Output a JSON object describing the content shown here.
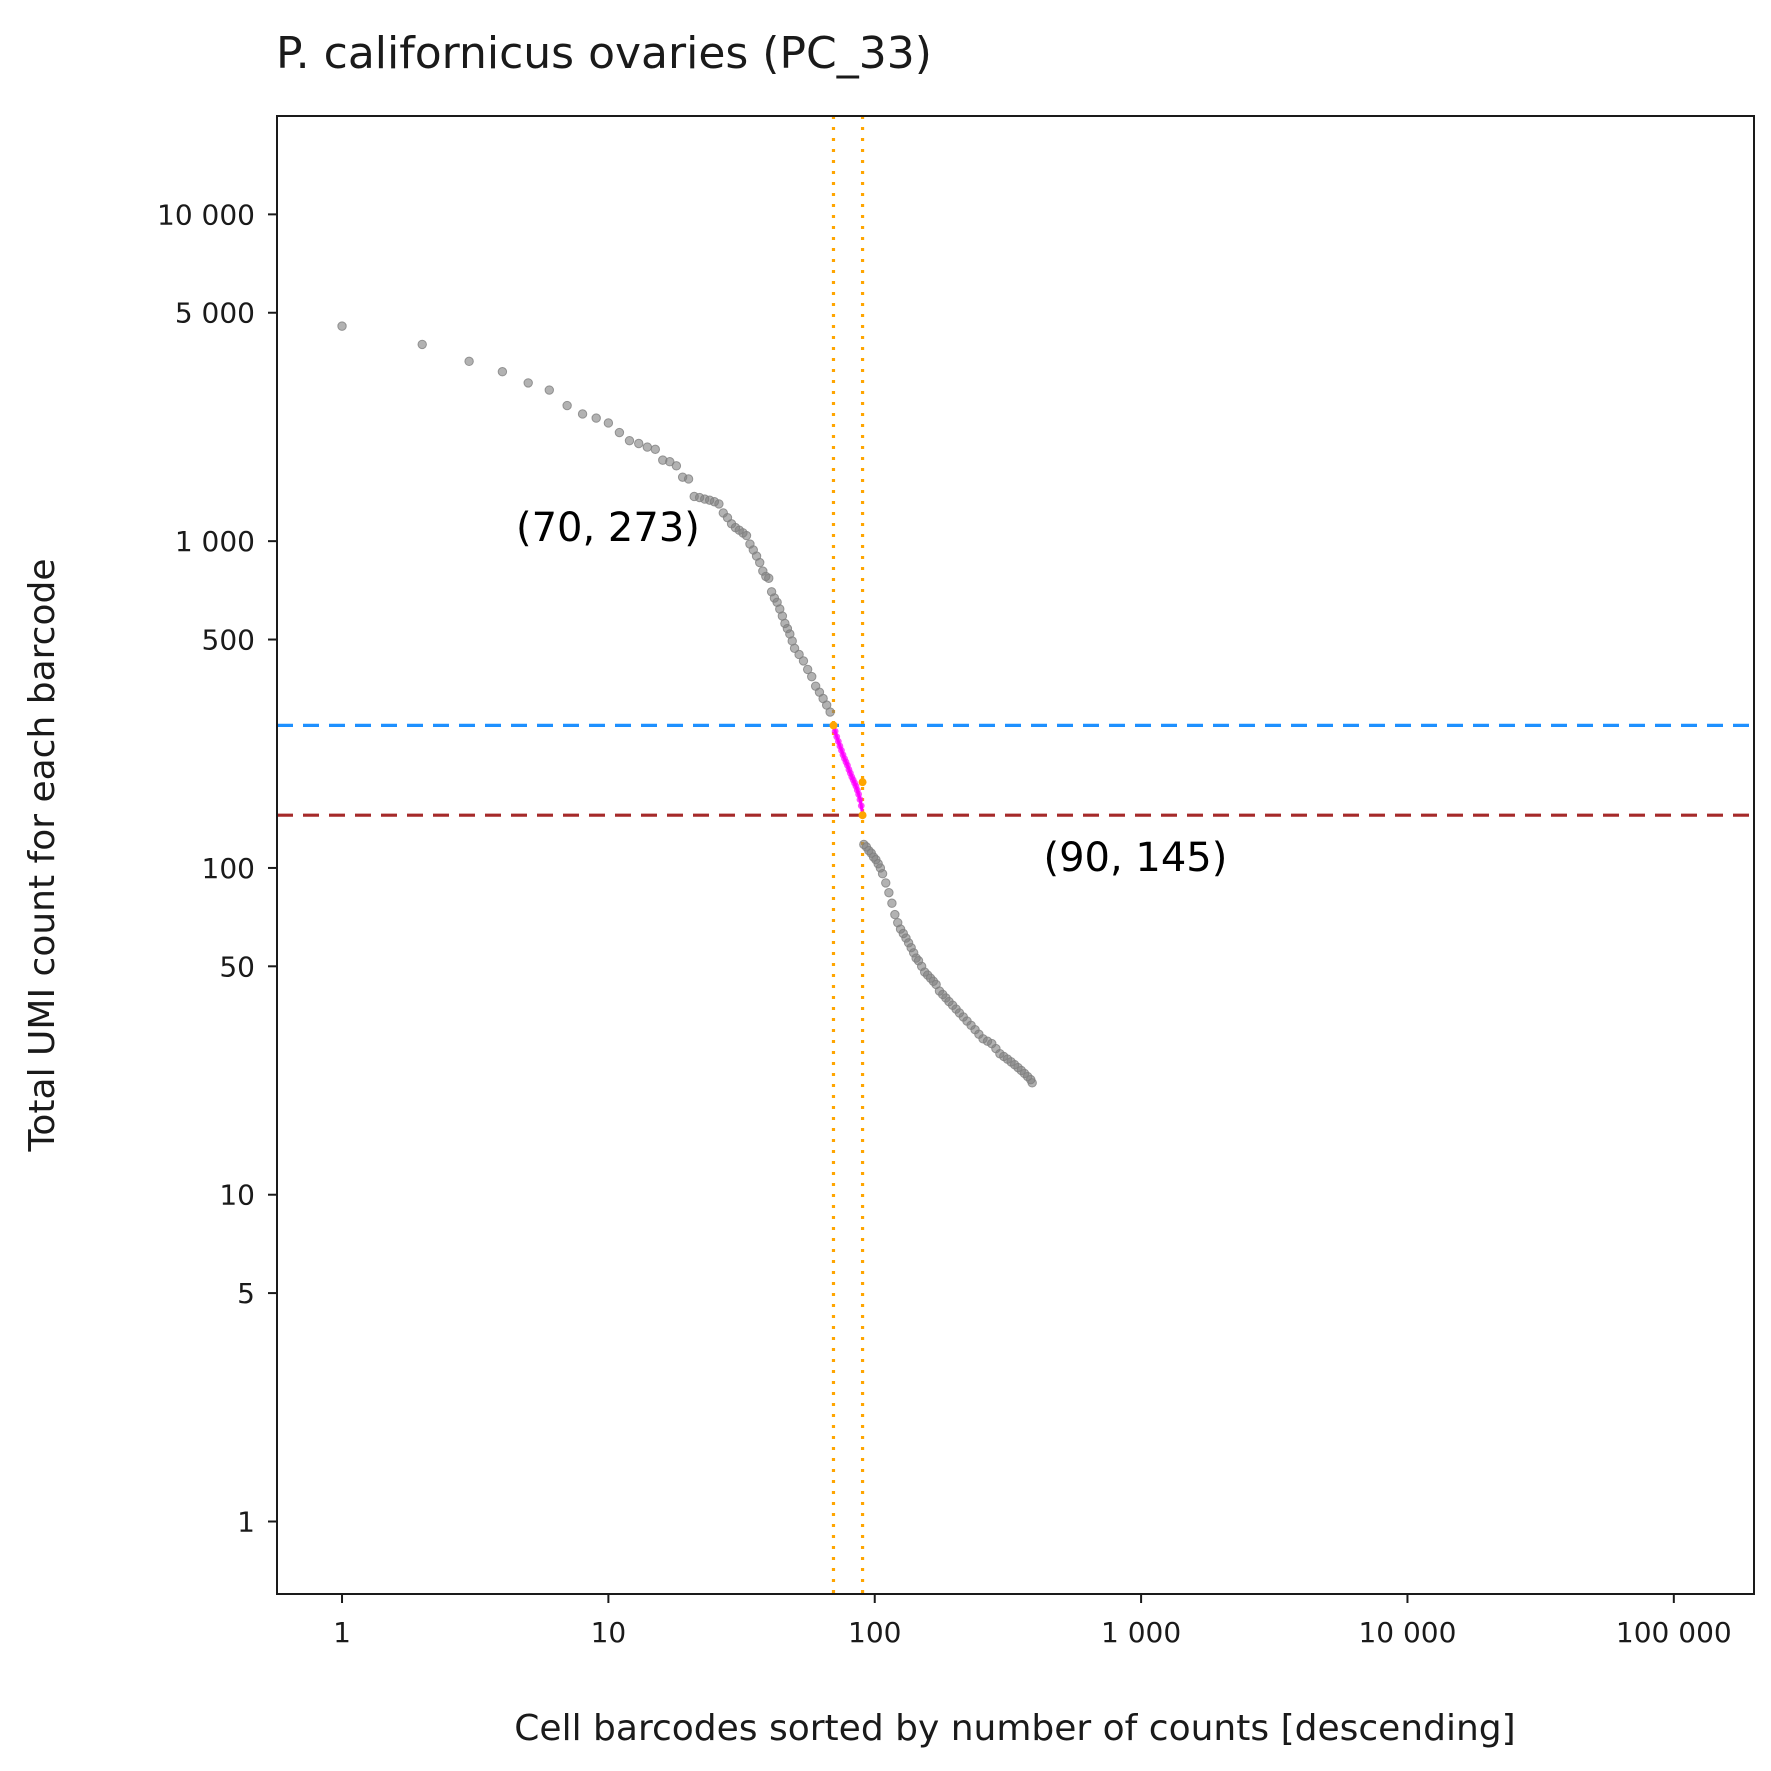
{
  "chart_data": {
    "type": "scatter",
    "title": "P. californicus ovaries (PC_33)",
    "xlabel": "Cell barcodes sorted by number of counts [descending]",
    "ylabel": "Total UMI count for each barcode",
    "xscale": "log",
    "yscale": "log",
    "xlim": [
      0.57,
      200000
    ],
    "ylim": [
      0.6,
      20000
    ],
    "grid": false,
    "x_ticks": [
      {
        "value": 1,
        "label": "1"
      },
      {
        "value": 10,
        "label": "10"
      },
      {
        "value": 100,
        "label": "100"
      },
      {
        "value": 1000,
        "label": "1 000"
      },
      {
        "value": 10000,
        "label": "10 000"
      },
      {
        "value": 100000,
        "label": "100 000"
      }
    ],
    "y_ticks": [
      {
        "value": 1,
        "label": "1"
      },
      {
        "value": 5,
        "label": "5"
      },
      {
        "value": 10,
        "label": "10"
      },
      {
        "value": 50,
        "label": "50"
      },
      {
        "value": 100,
        "label": "100"
      },
      {
        "value": 500,
        "label": "500"
      },
      {
        "value": 1000,
        "label": "1 000"
      },
      {
        "value": 5000,
        "label": "5 000"
      },
      {
        "value": 10000,
        "label": "10 000"
      }
    ],
    "colors": {
      "points": "#7f7f7f",
      "highlight": "#ff00ff",
      "knee_marker": "#ffa500",
      "upper_threshold": "#1e90ff",
      "lower_threshold": "#a52a2a",
      "vertical_lines": "#ffa500"
    },
    "series": [
      {
        "role": "barcodes",
        "points": [
          [
            1,
            4550
          ],
          [
            2,
            4000
          ],
          [
            3,
            3550
          ],
          [
            4,
            3300
          ],
          [
            5,
            3050
          ],
          [
            6,
            2900
          ],
          [
            7,
            2600
          ],
          [
            8,
            2450
          ],
          [
            9,
            2380
          ],
          [
            10,
            2300
          ],
          [
            11,
            2150
          ],
          [
            12,
            2030
          ],
          [
            13,
            1990
          ],
          [
            14,
            1940
          ],
          [
            15,
            1910
          ],
          [
            16,
            1770
          ],
          [
            17,
            1750
          ],
          [
            18,
            1700
          ],
          [
            19,
            1570
          ],
          [
            20,
            1550
          ],
          [
            21,
            1370
          ],
          [
            22,
            1360
          ],
          [
            23,
            1345
          ],
          [
            24,
            1335
          ],
          [
            25,
            1320
          ],
          [
            26,
            1300
          ],
          [
            27,
            1220
          ],
          [
            28,
            1180
          ],
          [
            29,
            1130
          ],
          [
            30,
            1100
          ],
          [
            31,
            1080
          ],
          [
            32,
            1060
          ],
          [
            33,
            1040
          ],
          [
            34,
            980
          ],
          [
            35,
            940
          ],
          [
            36,
            900
          ],
          [
            37,
            860
          ],
          [
            38,
            810
          ],
          [
            39,
            780
          ],
          [
            40,
            770
          ],
          [
            41,
            700
          ],
          [
            42,
            670
          ],
          [
            43,
            650
          ],
          [
            44,
            620
          ],
          [
            45,
            590
          ],
          [
            46,
            560
          ],
          [
            47,
            540
          ],
          [
            48,
            520
          ],
          [
            49,
            495
          ],
          [
            50,
            470
          ],
          [
            52,
            450
          ],
          [
            54,
            430
          ],
          [
            56,
            405
          ],
          [
            58,
            385
          ],
          [
            60,
            360
          ],
          [
            62,
            345
          ],
          [
            64,
            330
          ],
          [
            66,
            315
          ],
          [
            68,
            300
          ],
          [
            91,
            118
          ],
          [
            93,
            116
          ],
          [
            95,
            113
          ],
          [
            97,
            111
          ],
          [
            99,
            108
          ],
          [
            101,
            106
          ],
          [
            103,
            103
          ],
          [
            105,
            100
          ],
          [
            107,
            96
          ],
          [
            110,
            90
          ],
          [
            113,
            84
          ],
          [
            116,
            78
          ],
          [
            119,
            72
          ],
          [
            122,
            68
          ],
          [
            125,
            65
          ],
          [
            128,
            63
          ],
          [
            131,
            61
          ],
          [
            134,
            59
          ],
          [
            137,
            57
          ],
          [
            140,
            55
          ],
          [
            143,
            53
          ],
          [
            146,
            52
          ],
          [
            150,
            50
          ],
          [
            154,
            48
          ],
          [
            158,
            47
          ],
          [
            162,
            46
          ],
          [
            166,
            45
          ],
          [
            170,
            44
          ],
          [
            175,
            42
          ],
          [
            180,
            41
          ],
          [
            185,
            40
          ],
          [
            190,
            39
          ],
          [
            196,
            38
          ],
          [
            202,
            37
          ],
          [
            208,
            36
          ],
          [
            215,
            35
          ],
          [
            222,
            34
          ],
          [
            230,
            33
          ],
          [
            238,
            32
          ],
          [
            246,
            31
          ],
          [
            255,
            30
          ],
          [
            265,
            29.5
          ],
          [
            275,
            29
          ],
          [
            285,
            28
          ],
          [
            295,
            27
          ],
          [
            305,
            26.5
          ],
          [
            315,
            26
          ],
          [
            325,
            25.5
          ],
          [
            335,
            25
          ],
          [
            345,
            24.5
          ],
          [
            355,
            24
          ],
          [
            365,
            23.5
          ],
          [
            375,
            23
          ],
          [
            385,
            22.5
          ],
          [
            390,
            22
          ]
        ]
      },
      {
        "role": "highlighted range",
        "points": [
          [
            70,
            273
          ],
          [
            71,
            262
          ],
          [
            72,
            252
          ],
          [
            73,
            244
          ],
          [
            74,
            236
          ],
          [
            75,
            229
          ],
          [
            76,
            222
          ],
          [
            77,
            216
          ],
          [
            78,
            211
          ],
          [
            79,
            206
          ],
          [
            80,
            200
          ],
          [
            81,
            195
          ],
          [
            82,
            190
          ],
          [
            83,
            186
          ],
          [
            84,
            182
          ],
          [
            85,
            178
          ],
          [
            86,
            173
          ],
          [
            87,
            168
          ],
          [
            88,
            162
          ],
          [
            89,
            155
          ],
          [
            90,
            145
          ]
        ]
      },
      {
        "role": "knee markers",
        "points": [
          [
            70,
            273
          ],
          [
            90,
            145
          ],
          [
            90,
            183
          ]
        ]
      }
    ],
    "reference_lines": [
      {
        "orientation": "horizontal",
        "value": 273,
        "style": "dashed",
        "color": "#1e90ff"
      },
      {
        "orientation": "horizontal",
        "value": 145,
        "style": "dashed",
        "color": "#a52a2a"
      },
      {
        "orientation": "vertical",
        "value": 70,
        "style": "dotted",
        "color": "#ffa500"
      },
      {
        "orientation": "vertical",
        "value": 90,
        "style": "dotted",
        "color": "#ffa500"
      }
    ],
    "annotations": [
      {
        "text": "(70, 273)",
        "x": 4.5,
        "y": 1000
      },
      {
        "text": "(90, 145)",
        "x": 430,
        "y": 98
      }
    ]
  }
}
